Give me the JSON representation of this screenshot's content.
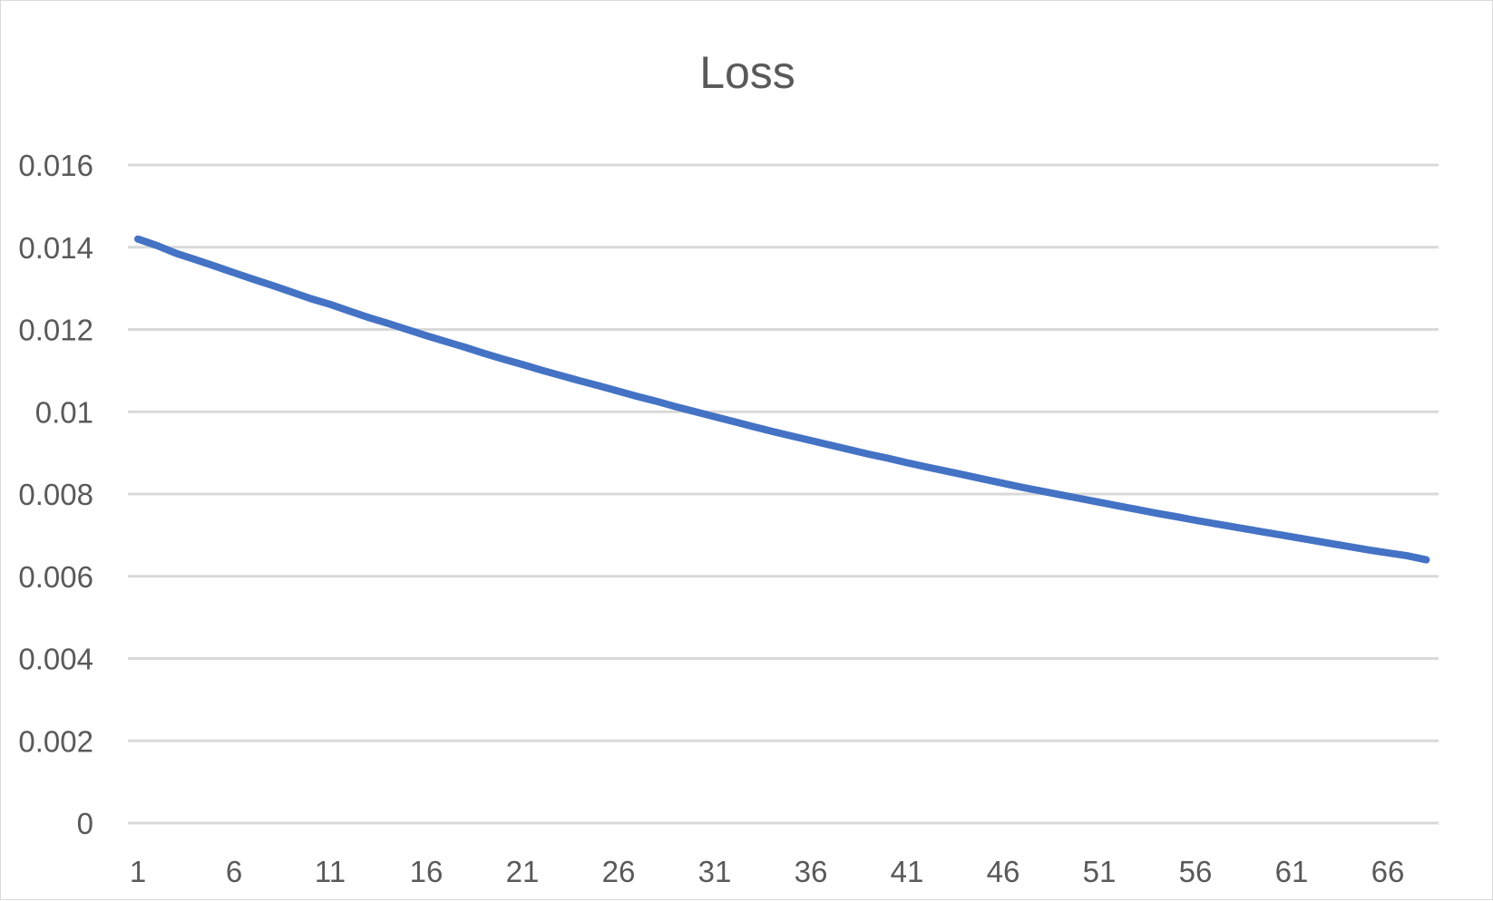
{
  "chart_data": {
    "type": "line",
    "title": "Loss",
    "xlabel": "",
    "ylabel": "",
    "x": [
      1,
      2,
      3,
      4,
      5,
      6,
      7,
      8,
      9,
      10,
      11,
      12,
      13,
      14,
      15,
      16,
      17,
      18,
      19,
      20,
      21,
      22,
      23,
      24,
      25,
      26,
      27,
      28,
      29,
      30,
      31,
      32,
      33,
      34,
      35,
      36,
      37,
      38,
      39,
      40,
      41,
      42,
      43,
      44,
      45,
      46,
      47,
      48,
      49,
      50,
      51,
      52,
      53,
      54,
      55,
      56,
      57,
      58,
      59,
      60,
      61,
      62,
      63,
      64,
      65,
      66,
      67,
      68
    ],
    "series": [
      {
        "color": "#4472c4",
        "values": [
          0.0142,
          0.01404,
          0.01385,
          0.0137,
          0.01354,
          0.01338,
          0.01322,
          0.01307,
          0.01291,
          0.01275,
          0.01261,
          0.01245,
          0.01229,
          0.01215,
          0.012,
          0.01185,
          0.01171,
          0.01157,
          0.01142,
          0.01128,
          0.01115,
          0.01101,
          0.01088,
          0.01075,
          0.01063,
          0.0105,
          0.01037,
          0.01025,
          0.01012,
          0.01,
          0.00988,
          0.00976,
          0.00964,
          0.00952,
          0.00941,
          0.0093,
          0.00919,
          0.00908,
          0.00897,
          0.00887,
          0.00876,
          0.00866,
          0.00856,
          0.00846,
          0.00836,
          0.00826,
          0.00816,
          0.00807,
          0.00798,
          0.00789,
          0.0078,
          0.00771,
          0.00762,
          0.00753,
          0.00745,
          0.00736,
          0.00728,
          0.0072,
          0.00712,
          0.00704,
          0.00696,
          0.00688,
          0.0068,
          0.00672,
          0.00664,
          0.00657,
          0.0065,
          0.0064
        ]
      }
    ],
    "ylim": [
      0,
      0.016
    ],
    "y_ticks": [
      "0",
      "0.002",
      "0.004",
      "0.006",
      "0.008",
      "0.01",
      "0.012",
      "0.014",
      "0.016"
    ],
    "x_ticks": [
      "1",
      "6",
      "11",
      "16",
      "21",
      "26",
      "31",
      "36",
      "41",
      "46",
      "51",
      "56",
      "61",
      "66"
    ],
    "grid": true,
    "legend": "none"
  }
}
